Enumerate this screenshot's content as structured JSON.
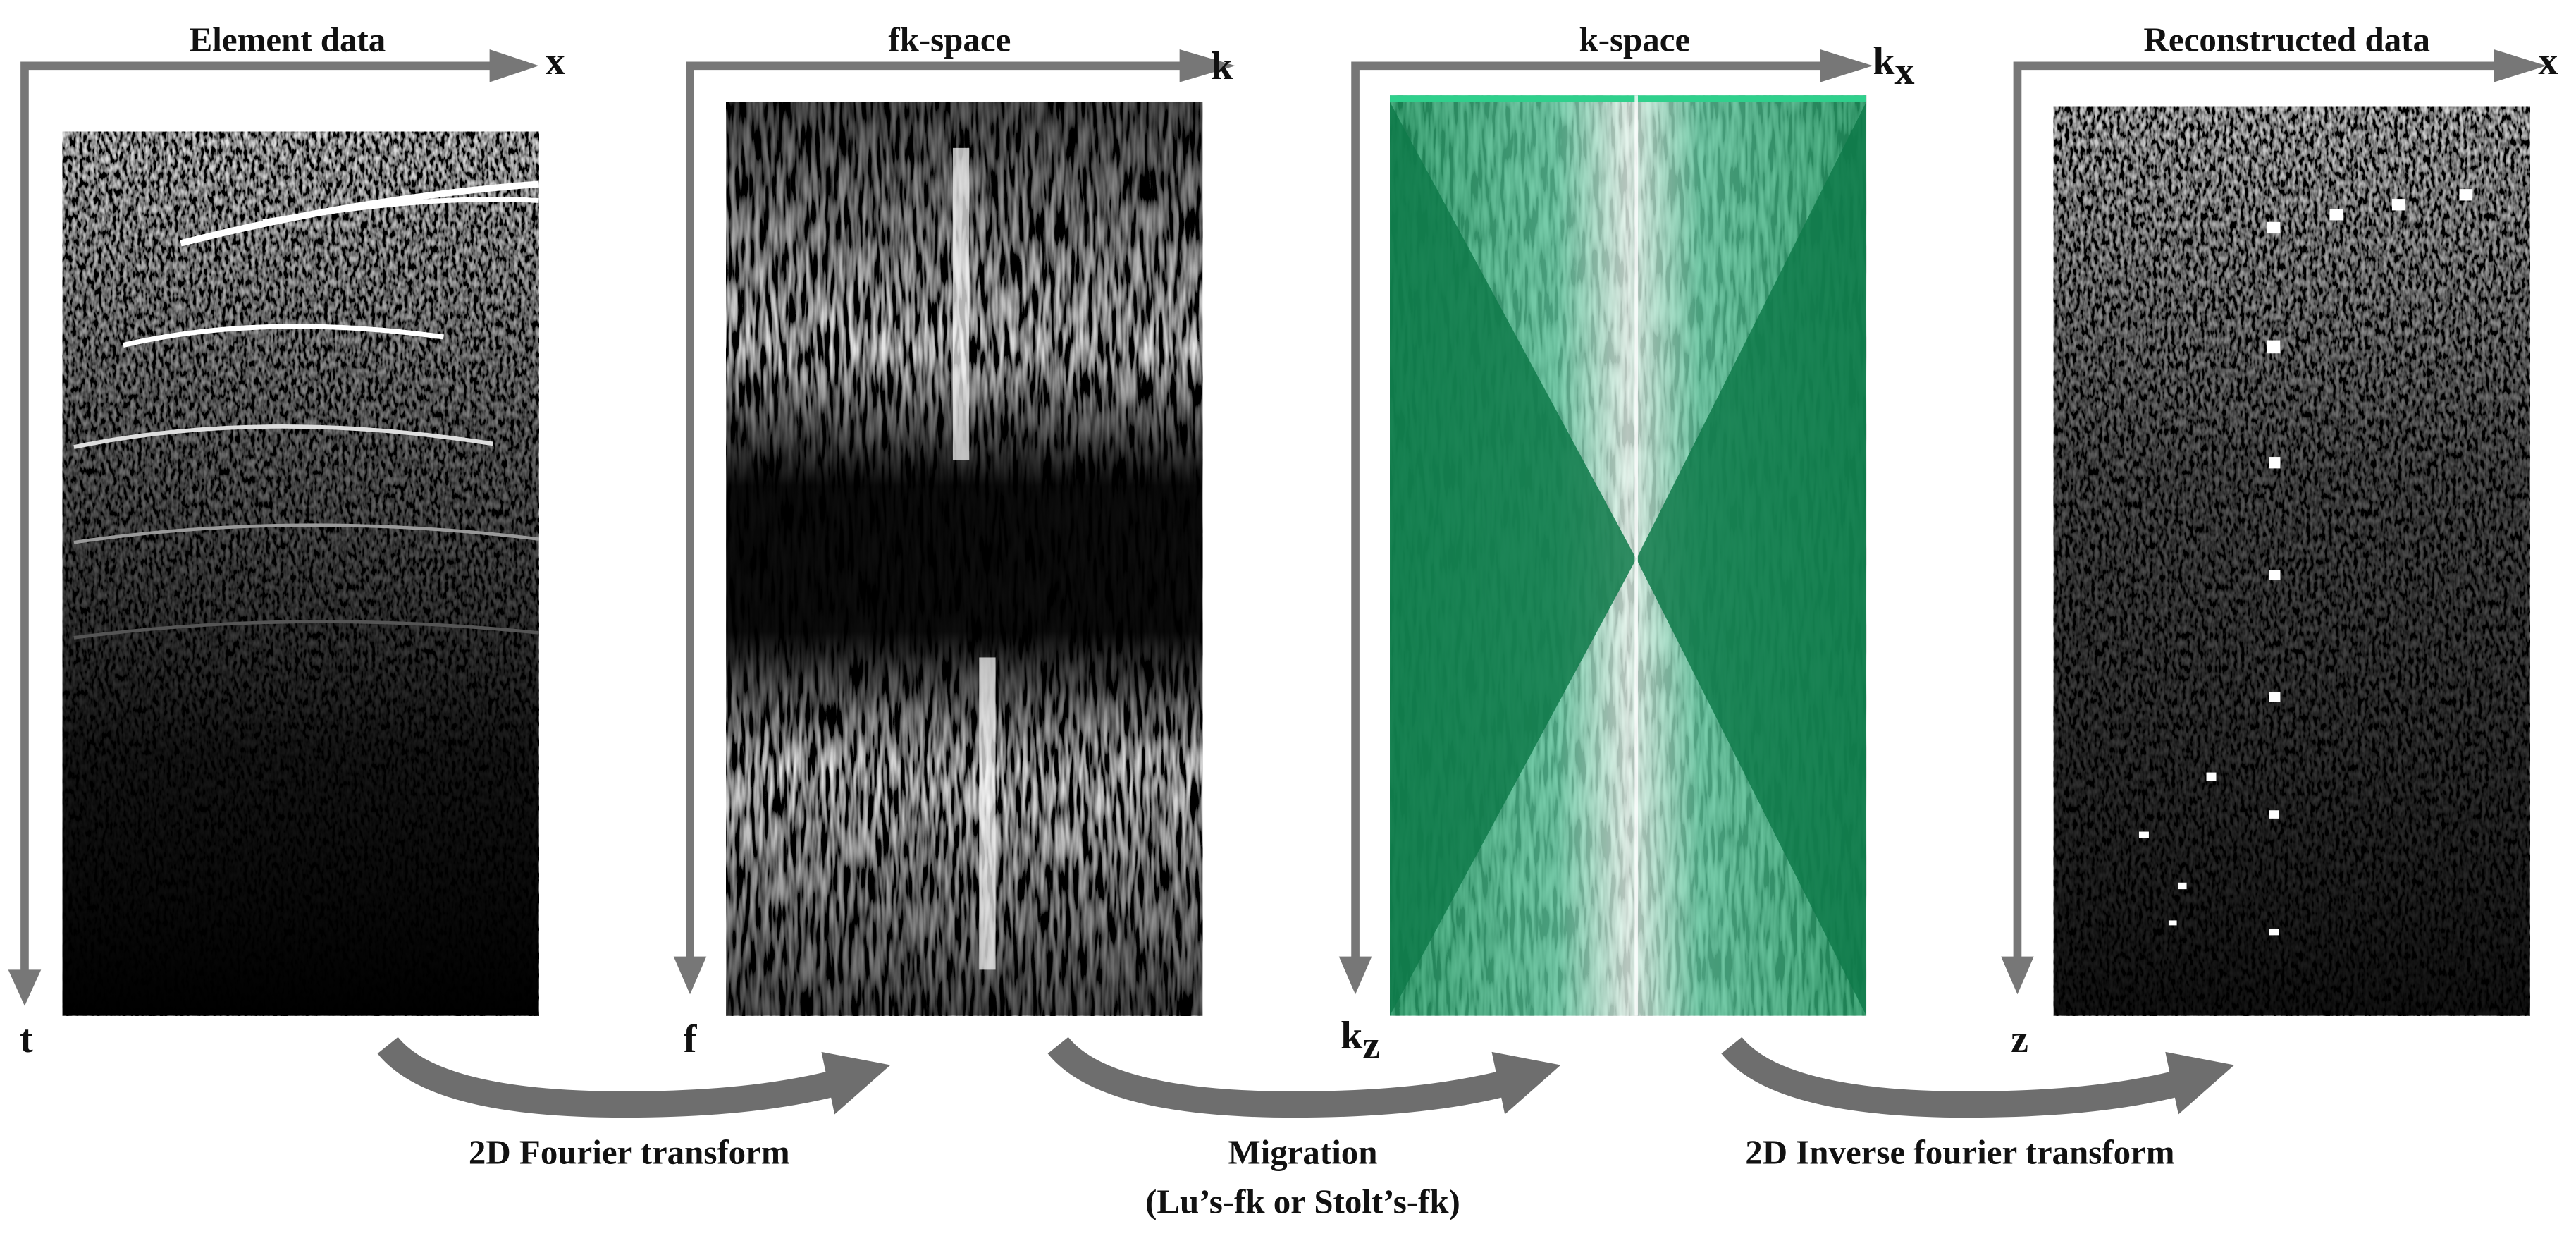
{
  "panels": [
    {
      "title": "Element data",
      "x_axis": {
        "symbol": "x"
      },
      "y_axis": {
        "symbol": "t"
      }
    },
    {
      "title": "fk-space",
      "x_axis": {
        "symbol": "k"
      },
      "y_axis": {
        "symbol": "f"
      }
    },
    {
      "title": "k-space",
      "x_axis": {
        "symbol": "k",
        "subscript": "x"
      },
      "y_axis": {
        "symbol": "k",
        "subscript": "z"
      }
    },
    {
      "title": "Reconstructed data",
      "x_axis": {
        "symbol": "x"
      },
      "y_axis": {
        "symbol": "z"
      }
    }
  ],
  "transforms": [
    {
      "label": "2D Fourier  transform"
    },
    {
      "label": "Migration",
      "note": "(Lu’s-fk or Stolt’s-fk)"
    },
    {
      "label": "2D Inverse fourier transform"
    }
  ]
}
